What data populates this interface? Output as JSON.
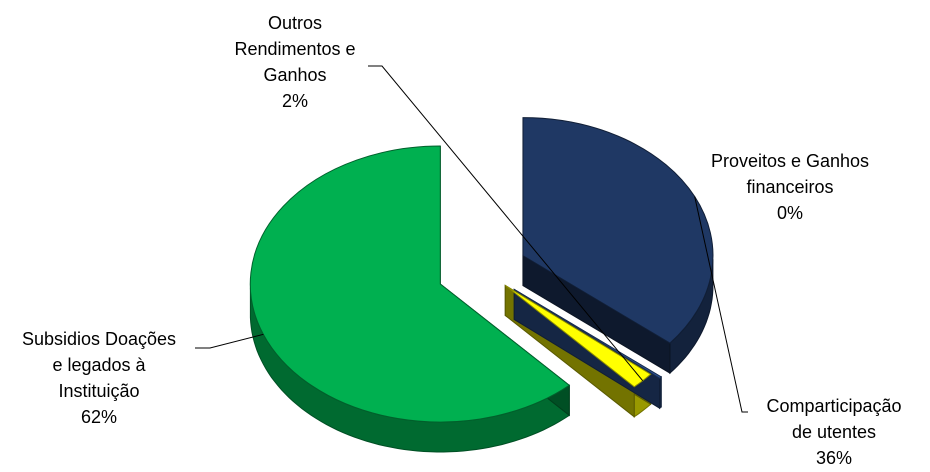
{
  "chart_data": {
    "type": "pie",
    "subtype": "3d-exploded",
    "title": "",
    "slices": [
      {
        "label_lines": [
          "Comparticipação",
          "de utentes"
        ],
        "percent_text": "36%",
        "value": 36,
        "color": "#1f3864"
      },
      {
        "label_lines": [
          "Proveitos e Ganhos",
          "financeiros"
        ],
        "percent_text": "0%",
        "value": 0.2,
        "color": "#2e5597"
      },
      {
        "label_lines": [
          "Outros",
          "Rendimentos e",
          "Ganhos"
        ],
        "percent_text": "2%",
        "value": 2,
        "color": "#ffff00"
      },
      {
        "label_lines": [
          "Subsidios Doações",
          "e legados à",
          "Instituição"
        ],
        "percent_text": "62%",
        "value": 62,
        "color": "#00b050"
      }
    ],
    "legend": "none",
    "data_labels": "category-name-and-percent"
  }
}
